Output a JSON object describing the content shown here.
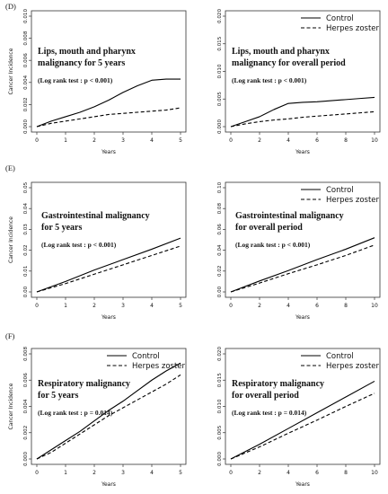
{
  "chart_data": [
    {
      "id": "D-left",
      "type": "line",
      "section_label": "(D)",
      "title_lines": [
        "Lips, mouth and pharynx",
        "malignancy for 5 years"
      ],
      "test": "(Log rank test : p < 0.001)",
      "xlabel": "Years",
      "ylabel": "Cancer Incidence",
      "xlim": [
        0,
        5
      ],
      "ylim": [
        0,
        0.01
      ],
      "xticks": [
        "0",
        "1",
        "2",
        "3",
        "4",
        "5"
      ],
      "yticks": [
        "0.000",
        "0.002",
        "0.004",
        "0.006",
        "0.008",
        "0.010"
      ],
      "legend": null,
      "series": [
        {
          "name": "Control",
          "style": "solid",
          "x": [
            0,
            0.5,
            1,
            1.5,
            2,
            2.5,
            3,
            3.5,
            4,
            4.5,
            5
          ],
          "y": [
            0,
            0.0005,
            0.0009,
            0.0013,
            0.0018,
            0.0024,
            0.0031,
            0.0037,
            0.0042,
            0.0043,
            0.0043
          ]
        },
        {
          "name": "Herpes zoster",
          "style": "dashed",
          "x": [
            0,
            0.5,
            1,
            1.5,
            2,
            2.5,
            3,
            3.5,
            4,
            4.5,
            5
          ],
          "y": [
            0,
            0.0003,
            0.0005,
            0.0007,
            0.0009,
            0.0011,
            0.0012,
            0.0013,
            0.0014,
            0.0015,
            0.0017
          ]
        }
      ]
    },
    {
      "id": "D-right",
      "type": "line",
      "title_lines": [
        "Lips, mouth and pharynx",
        "malignancy for overall period"
      ],
      "test": "(Log rank test : p < 0.001)",
      "xlabel": "Years",
      "ylabel": "",
      "xlim": [
        0,
        10
      ],
      "ylim": [
        0,
        0.02
      ],
      "xticks": [
        "0",
        "2",
        "4",
        "6",
        "8",
        "10"
      ],
      "yticks": [
        "0.000",
        "0.005",
        "0.010",
        "0.015",
        "0.020"
      ],
      "legend": [
        "Control",
        "Herpes zoster"
      ],
      "series": [
        {
          "name": "Control",
          "style": "solid",
          "x": [
            0,
            1,
            2,
            3,
            4,
            5,
            6,
            7,
            8,
            9,
            10
          ],
          "y": [
            0,
            0.0009,
            0.0018,
            0.0031,
            0.0042,
            0.0044,
            0.0045,
            0.0047,
            0.0049,
            0.0051,
            0.0053
          ]
        },
        {
          "name": "Herpes zoster",
          "style": "dashed",
          "x": [
            0,
            1,
            2,
            3,
            4,
            5,
            6,
            7,
            8,
            9,
            10
          ],
          "y": [
            0,
            0.0005,
            0.0009,
            0.0012,
            0.0014,
            0.0017,
            0.0019,
            0.0021,
            0.0023,
            0.0025,
            0.0027
          ]
        }
      ]
    },
    {
      "id": "E-left",
      "type": "line",
      "section_label": "(E)",
      "title_lines": [
        "Gastrointestinal malignancy",
        "for 5 years"
      ],
      "test": "(Log rank test : p < 0.001)",
      "xlabel": "Years",
      "ylabel": "Cancer Incidence",
      "xlim": [
        0,
        5
      ],
      "ylim": [
        0,
        0.05
      ],
      "xticks": [
        "0",
        "1",
        "2",
        "3",
        "4",
        "5"
      ],
      "yticks": [
        "0.00",
        "0.01",
        "0.02",
        "0.03",
        "0.04",
        "0.05"
      ],
      "legend": null,
      "series": [
        {
          "name": "Control",
          "style": "solid",
          "x": [
            0,
            1,
            2,
            3,
            4,
            5
          ],
          "y": [
            0,
            0.005,
            0.0105,
            0.0155,
            0.0205,
            0.0258
          ]
        },
        {
          "name": "Herpes zoster",
          "style": "dashed",
          "x": [
            0,
            1,
            2,
            3,
            4,
            5
          ],
          "y": [
            0,
            0.004,
            0.0085,
            0.013,
            0.0175,
            0.022
          ]
        }
      ]
    },
    {
      "id": "E-right",
      "type": "line",
      "title_lines": [
        "Gastrointestinal malignancy",
        "for overall period"
      ],
      "test": "(Log rank test : p < 0.001)",
      "xlabel": "Years",
      "ylabel": "",
      "xlim": [
        0,
        10
      ],
      "ylim": [
        0,
        0.1
      ],
      "xticks": [
        "0",
        "2",
        "4",
        "6",
        "8",
        "10"
      ],
      "yticks": [
        "0.00",
        "0.02",
        "0.04",
        "0.06",
        "0.08",
        "0.10"
      ],
      "legend": [
        "Control",
        "Herpes zoster"
      ],
      "series": [
        {
          "name": "Control",
          "style": "solid",
          "x": [
            0,
            2,
            4,
            6,
            8,
            10
          ],
          "y": [
            0,
            0.0105,
            0.0205,
            0.031,
            0.041,
            0.052
          ]
        },
        {
          "name": "Herpes zoster",
          "style": "dashed",
          "x": [
            0,
            2,
            4,
            6,
            8,
            10
          ],
          "y": [
            0,
            0.0085,
            0.0175,
            0.026,
            0.035,
            0.045
          ]
        }
      ]
    },
    {
      "id": "F-left",
      "type": "line",
      "section_label": "(F)",
      "title_lines": [
        "Respiratory malignancy",
        "for 5 years"
      ],
      "test": "(Log rank test : p = 0.014)",
      "xlabel": "Years",
      "ylabel": "Cancer Incidence",
      "xlim": [
        0,
        5
      ],
      "ylim": [
        0,
        0.008
      ],
      "xticks": [
        "0",
        "1",
        "2",
        "3",
        "4",
        "5"
      ],
      "yticks": [
        "0.000",
        "0.002",
        "0.004",
        "0.006",
        "0.008"
      ],
      "legend": [
        "Control",
        "Herpes zoster"
      ],
      "series": [
        {
          "name": "Control",
          "style": "solid",
          "x": [
            0,
            0.5,
            1,
            1.5,
            2,
            2.5,
            3,
            3.5,
            4,
            4.5,
            5
          ],
          "y": [
            0,
            0.0007,
            0.0014,
            0.0021,
            0.0029,
            0.0037,
            0.0044,
            0.0052,
            0.006,
            0.0067,
            0.0073
          ]
        },
        {
          "name": "Herpes zoster",
          "style": "dashed",
          "x": [
            0,
            0.5,
            1,
            1.5,
            2,
            2.5,
            3,
            3.5,
            4,
            4.5,
            5
          ],
          "y": [
            0,
            0.0005,
            0.0012,
            0.0019,
            0.0026,
            0.0033,
            0.0039,
            0.0045,
            0.0051,
            0.0057,
            0.0064
          ]
        }
      ]
    },
    {
      "id": "F-right",
      "type": "line",
      "title_lines": [
        "Respiratory malignancy",
        "for overall period"
      ],
      "test": "(Log rank test : p = 0.014)",
      "xlabel": "Years",
      "ylabel": "",
      "xlim": [
        0,
        10
      ],
      "ylim": [
        0,
        0.02
      ],
      "xticks": [
        "0",
        "2",
        "4",
        "6",
        "8",
        "10"
      ],
      "yticks": [
        "0.000",
        "0.005",
        "0.010",
        "0.015",
        "0.020"
      ],
      "legend": [
        "Control",
        "Herpes zoster"
      ],
      "series": [
        {
          "name": "Control",
          "style": "solid",
          "x": [
            0,
            2,
            4,
            6,
            8,
            10
          ],
          "y": [
            0,
            0.0028,
            0.0058,
            0.0088,
            0.0118,
            0.0148
          ]
        },
        {
          "name": "Herpes zoster",
          "style": "dashed",
          "x": [
            0,
            2,
            4,
            6,
            8,
            10
          ],
          "y": [
            0,
            0.0023,
            0.0049,
            0.0074,
            0.01,
            0.0125
          ]
        }
      ]
    }
  ]
}
